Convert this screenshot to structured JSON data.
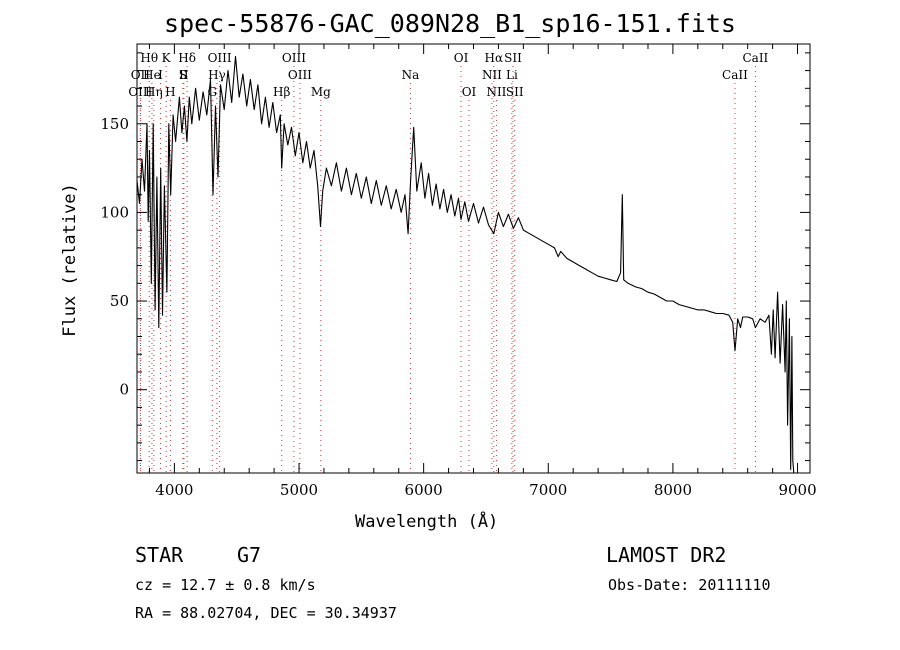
{
  "chart_data": {
    "type": "line",
    "title": "spec-55876-GAC_089N28_B1_sp16-151.fits",
    "xlabel": "Wavelength (Å)",
    "ylabel": "Flux (relative)",
    "xlim": [
      3700,
      9100
    ],
    "ylim": [
      -47,
      195
    ],
    "xticks": [
      4000,
      5000,
      6000,
      7000,
      8000,
      9000
    ],
    "yticks": [
      0,
      50,
      100,
      150
    ],
    "x_minor_step": 200,
    "y_minor_step": 10,
    "grid": false,
    "line_color": "#000000",
    "marker_color": "#cc3333",
    "series": [
      {
        "values": [
          [
            3700,
            118
          ],
          [
            3720,
            105
          ],
          [
            3740,
            130
          ],
          [
            3760,
            112
          ],
          [
            3780,
            150
          ],
          [
            3790,
            95
          ],
          [
            3800,
            135
          ],
          [
            3815,
            60
          ],
          [
            3830,
            150
          ],
          [
            3845,
            45
          ],
          [
            3860,
            120
          ],
          [
            3875,
            35
          ],
          [
            3890,
            125
          ],
          [
            3905,
            42
          ],
          [
            3920,
            115
          ],
          [
            3940,
            55
          ],
          [
            3955,
            150
          ],
          [
            3970,
            110
          ],
          [
            3990,
            155
          ],
          [
            4010,
            140
          ],
          [
            4040,
            165
          ],
          [
            4060,
            145
          ],
          [
            4080,
            160
          ],
          [
            4100,
            140
          ],
          [
            4120,
            165
          ],
          [
            4140,
            150
          ],
          [
            4170,
            170
          ],
          [
            4200,
            152
          ],
          [
            4230,
            168
          ],
          [
            4260,
            155
          ],
          [
            4290,
            175
          ],
          [
            4310,
            110
          ],
          [
            4330,
            160
          ],
          [
            4350,
            120
          ],
          [
            4370,
            172
          ],
          [
            4400,
            158
          ],
          [
            4430,
            180
          ],
          [
            4460,
            162
          ],
          [
            4490,
            188
          ],
          [
            4520,
            165
          ],
          [
            4550,
            178
          ],
          [
            4580,
            160
          ],
          [
            4610,
            175
          ],
          [
            4640,
            158
          ],
          [
            4670,
            172
          ],
          [
            4700,
            150
          ],
          [
            4730,
            165
          ],
          [
            4760,
            148
          ],
          [
            4790,
            162
          ],
          [
            4820,
            145
          ],
          [
            4850,
            155
          ],
          [
            4861,
            125
          ],
          [
            4880,
            150
          ],
          [
            4910,
            138
          ],
          [
            4940,
            148
          ],
          [
            4970,
            132
          ],
          [
            5000,
            145
          ],
          [
            5030,
            128
          ],
          [
            5060,
            140
          ],
          [
            5090,
            125
          ],
          [
            5120,
            135
          ],
          [
            5150,
            115
          ],
          [
            5172,
            92
          ],
          [
            5190,
            112
          ],
          [
            5220,
            125
          ],
          [
            5260,
            115
          ],
          [
            5300,
            128
          ],
          [
            5340,
            112
          ],
          [
            5380,
            125
          ],
          [
            5420,
            110
          ],
          [
            5460,
            122
          ],
          [
            5500,
            108
          ],
          [
            5540,
            120
          ],
          [
            5580,
            105
          ],
          [
            5620,
            118
          ],
          [
            5660,
            104
          ],
          [
            5700,
            115
          ],
          [
            5740,
            102
          ],
          [
            5780,
            113
          ],
          [
            5820,
            100
          ],
          [
            5850,
            110
          ],
          [
            5875,
            88
          ],
          [
            5895,
            118
          ],
          [
            5920,
            148
          ],
          [
            5945,
            112
          ],
          [
            5980,
            128
          ],
          [
            6010,
            108
          ],
          [
            6040,
            122
          ],
          [
            6070,
            104
          ],
          [
            6100,
            116
          ],
          [
            6130,
            102
          ],
          [
            6160,
            113
          ],
          [
            6190,
            100
          ],
          [
            6220,
            110
          ],
          [
            6250,
            98
          ],
          [
            6280,
            108
          ],
          [
            6300,
            96
          ],
          [
            6330,
            106
          ],
          [
            6360,
            95
          ],
          [
            6400,
            105
          ],
          [
            6440,
            94
          ],
          [
            6480,
            103
          ],
          [
            6520,
            93
          ],
          [
            6563,
            88
          ],
          [
            6600,
            100
          ],
          [
            6640,
            92
          ],
          [
            6680,
            99
          ],
          [
            6720,
            91
          ],
          [
            6760,
            97
          ],
          [
            6800,
            90
          ],
          [
            6850,
            88
          ],
          [
            6900,
            86
          ],
          [
            6950,
            84
          ],
          [
            7000,
            82
          ],
          [
            7050,
            80
          ],
          [
            7080,
            75
          ],
          [
            7100,
            78
          ],
          [
            7150,
            74
          ],
          [
            7200,
            72
          ],
          [
            7250,
            70
          ],
          [
            7300,
            68
          ],
          [
            7350,
            66
          ],
          [
            7400,
            64
          ],
          [
            7450,
            63
          ],
          [
            7500,
            62
          ],
          [
            7550,
            61
          ],
          [
            7580,
            66
          ],
          [
            7594,
            110
          ],
          [
            7605,
            62
          ],
          [
            7640,
            60
          ],
          [
            7700,
            58
          ],
          [
            7750,
            57
          ],
          [
            7800,
            55
          ],
          [
            7850,
            54
          ],
          [
            7900,
            52
          ],
          [
            7950,
            50
          ],
          [
            8000,
            50
          ],
          [
            8050,
            48
          ],
          [
            8100,
            47
          ],
          [
            8150,
            46
          ],
          [
            8200,
            45
          ],
          [
            8250,
            45
          ],
          [
            8300,
            44
          ],
          [
            8350,
            43
          ],
          [
            8400,
            43
          ],
          [
            8450,
            42
          ],
          [
            8480,
            38
          ],
          [
            8498,
            22
          ],
          [
            8520,
            40
          ],
          [
            8542,
            35
          ],
          [
            8560,
            41
          ],
          [
            8600,
            41
          ],
          [
            8640,
            40
          ],
          [
            8662,
            35
          ],
          [
            8700,
            40
          ],
          [
            8740,
            38
          ],
          [
            8770,
            42
          ],
          [
            8790,
            20
          ],
          [
            8805,
            45
          ],
          [
            8820,
            18
          ],
          [
            8840,
            55
          ],
          [
            8860,
            15
          ],
          [
            8880,
            48
          ],
          [
            8900,
            10
          ],
          [
            8910,
            50
          ],
          [
            8920,
            -20
          ],
          [
            8935,
            40
          ],
          [
            8945,
            -45
          ],
          [
            8955,
            30
          ],
          [
            8962,
            -40
          ],
          [
            8970,
            -47
          ]
        ]
      }
    ],
    "line_markers": [
      {
        "label": "Hθ",
        "wavelength": 3798,
        "row": 1
      },
      {
        "label": "OII",
        "wavelength": 3727,
        "row": 2
      },
      {
        "label": "OIII",
        "wavelength": 3727,
        "row": 3
      },
      {
        "label": "He",
        "wavelength": 3820,
        "row": 2
      },
      {
        "label": "Hη",
        "wavelength": 3835,
        "row": 3
      },
      {
        "label": "K",
        "wavelength": 3934,
        "row": 1
      },
      {
        "label": "I",
        "wavelength": 3889,
        "row": 2
      },
      {
        "label": "H",
        "wavelength": 3968,
        "row": 3
      },
      {
        "label": "S",
        "wavelength": 4068,
        "row": 2
      },
      {
        "label": "II",
        "wavelength": 4076,
        "row": 2
      },
      {
        "label": "Hδ",
        "wavelength": 4102,
        "row": 1
      },
      {
        "label": "OIII",
        "wavelength": 4363,
        "row": 1
      },
      {
        "label": "Hγ",
        "wavelength": 4341,
        "row": 2
      },
      {
        "label": "G",
        "wavelength": 4304,
        "row": 3
      },
      {
        "label": "Hβ",
        "wavelength": 4861,
        "row": 3
      },
      {
        "label": "OIII",
        "wavelength": 4959,
        "row": 1
      },
      {
        "label": "OIII",
        "wavelength": 5007,
        "row": 2
      },
      {
        "label": "Mg",
        "wavelength": 5175,
        "row": 3
      },
      {
        "label": "Na",
        "wavelength": 5894,
        "row": 2
      },
      {
        "label": "OI",
        "wavelength": 6300,
        "row": 1
      },
      {
        "label": "OI",
        "wavelength": 6364,
        "row": 3
      },
      {
        "label": "Hα",
        "wavelength": 6563,
        "row": 1
      },
      {
        "label": "NII",
        "wavelength": 6548,
        "row": 2
      },
      {
        "label": "NII",
        "wavelength": 6584,
        "row": 3
      },
      {
        "label": "SII",
        "wavelength": 6717,
        "row": 1
      },
      {
        "label": "Li",
        "wavelength": 6708,
        "row": 2
      },
      {
        "label": "SII",
        "wavelength": 6731,
        "row": 3
      },
      {
        "label": "CaII",
        "wavelength": 8498,
        "row": 2
      },
      {
        "label": "CaII",
        "wavelength": 8662,
        "row": 1
      }
    ]
  },
  "info": {
    "object_class": "STAR",
    "subclass": "G7",
    "survey": "LAMOST DR2",
    "redshift_text": "cz = 12.7 ± 0.8 km/s",
    "obs_date_text": "Obs-Date: 20111110",
    "coords_text": "RA =  88.02704, DEC =  30.34937"
  }
}
